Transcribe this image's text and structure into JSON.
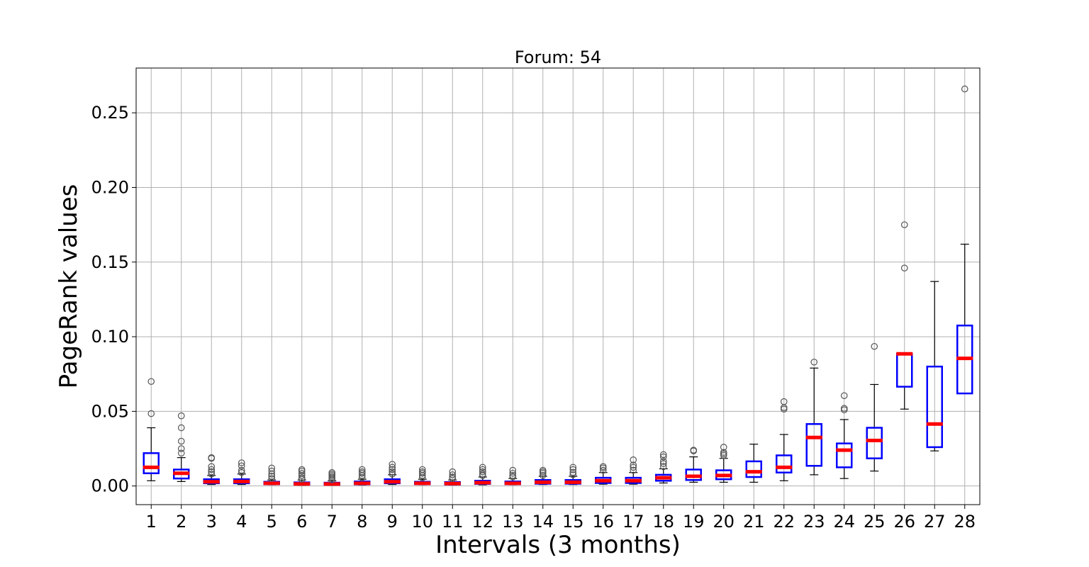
{
  "chart_data": {
    "type": "box",
    "title": "Forum: 54",
    "xlabel": "Intervals (3 months)",
    "ylabel": "PageRank values",
    "ylim": [
      -0.0125,
      0.28
    ],
    "yticks": [
      0.0,
      0.05,
      0.1,
      0.15,
      0.2,
      0.25
    ],
    "ytick_labels": [
      "0.00",
      "0.05",
      "0.10",
      "0.15",
      "0.20",
      "0.25"
    ],
    "grid": true,
    "colors": {
      "box": "#0000ff",
      "median": "#ff0000",
      "whisker": "#000000",
      "flier": "#555555",
      "grid": "#b0b0b0"
    },
    "categories": [
      "1",
      "2",
      "3",
      "4",
      "5",
      "6",
      "7",
      "8",
      "9",
      "10",
      "11",
      "12",
      "13",
      "14",
      "15",
      "16",
      "17",
      "18",
      "19",
      "20",
      "21",
      "22",
      "23",
      "24",
      "25",
      "26",
      "27",
      "28"
    ],
    "boxes": [
      {
        "whislo": 0.0035,
        "q1": 0.0085,
        "med": 0.0125,
        "q3": 0.022,
        "whishi": 0.039,
        "fliers": [
          0.0485,
          0.07
        ]
      },
      {
        "whislo": 0.003,
        "q1": 0.005,
        "med": 0.0085,
        "q3": 0.011,
        "whishi": 0.019,
        "fliers": [
          0.022,
          0.025,
          0.03,
          0.039,
          0.047
        ]
      },
      {
        "whislo": 0.001,
        "q1": 0.0018,
        "med": 0.0028,
        "q3": 0.0045,
        "whishi": 0.007,
        "fliers": [
          0.008,
          0.0095,
          0.011,
          0.013,
          0.0185,
          0.019
        ]
      },
      {
        "whislo": 0.001,
        "q1": 0.0018,
        "med": 0.003,
        "q3": 0.0045,
        "whishi": 0.008,
        "fliers": [
          0.009,
          0.0105,
          0.0135,
          0.0155
        ]
      },
      {
        "whislo": 0.0008,
        "q1": 0.0012,
        "med": 0.0018,
        "q3": 0.0028,
        "whishi": 0.004,
        "fliers": [
          0.005,
          0.0065,
          0.008,
          0.01,
          0.012
        ]
      },
      {
        "whislo": 0.0005,
        "q1": 0.0009,
        "med": 0.0014,
        "q3": 0.0024,
        "whishi": 0.004,
        "fliers": [
          0.0045,
          0.0055,
          0.007,
          0.0085,
          0.01,
          0.011
        ]
      },
      {
        "whislo": 0.0005,
        "q1": 0.0009,
        "med": 0.0013,
        "q3": 0.0022,
        "whishi": 0.0035,
        "fliers": [
          0.004,
          0.005,
          0.006,
          0.007,
          0.008,
          0.009
        ]
      },
      {
        "whislo": 0.0007,
        "q1": 0.0011,
        "med": 0.0018,
        "q3": 0.003,
        "whishi": 0.0045,
        "fliers": [
          0.0055,
          0.007,
          0.0085,
          0.0095,
          0.011
        ]
      },
      {
        "whislo": 0.001,
        "q1": 0.0018,
        "med": 0.0028,
        "q3": 0.0045,
        "whishi": 0.0075,
        "fliers": [
          0.008,
          0.0095,
          0.011,
          0.0125,
          0.0145
        ]
      },
      {
        "whislo": 0.0008,
        "q1": 0.0012,
        "med": 0.0018,
        "q3": 0.0028,
        "whishi": 0.0045,
        "fliers": [
          0.0055,
          0.007,
          0.0085,
          0.0095,
          0.011
        ]
      },
      {
        "whislo": 0.0006,
        "q1": 0.001,
        "med": 0.0016,
        "q3": 0.0026,
        "whishi": 0.004,
        "fliers": [
          0.005,
          0.006,
          0.0075,
          0.0095
        ]
      },
      {
        "whislo": 0.0008,
        "q1": 0.0014,
        "med": 0.0022,
        "q3": 0.0035,
        "whishi": 0.006,
        "fliers": [
          0.007,
          0.008,
          0.0095,
          0.011,
          0.0125
        ]
      },
      {
        "whislo": 0.0008,
        "q1": 0.0012,
        "med": 0.0018,
        "q3": 0.003,
        "whishi": 0.005,
        "fliers": [
          0.006,
          0.007,
          0.0085,
          0.0105
        ]
      },
      {
        "whislo": 0.001,
        "q1": 0.0015,
        "med": 0.0025,
        "q3": 0.004,
        "whishi": 0.0065,
        "fliers": [
          0.007,
          0.0085,
          0.0095,
          0.0105
        ]
      },
      {
        "whislo": 0.001,
        "q1": 0.0015,
        "med": 0.0025,
        "q3": 0.004,
        "whishi": 0.0065,
        "fliers": [
          0.0075,
          0.009,
          0.011,
          0.0125
        ]
      },
      {
        "whislo": 0.0012,
        "q1": 0.002,
        "med": 0.0035,
        "q3": 0.0055,
        "whishi": 0.009,
        "fliers": [
          0.0105,
          0.012,
          0.013
        ]
      },
      {
        "whislo": 0.0012,
        "q1": 0.002,
        "med": 0.0035,
        "q3": 0.0055,
        "whishi": 0.009,
        "fliers": [
          0.0105,
          0.0125,
          0.014,
          0.0175
        ]
      },
      {
        "whislo": 0.002,
        "q1": 0.0035,
        "med": 0.0055,
        "q3": 0.0075,
        "whishi": 0.0115,
        "fliers": [
          0.013,
          0.015,
          0.0165,
          0.0195,
          0.021
        ]
      },
      {
        "whislo": 0.0025,
        "q1": 0.004,
        "med": 0.0065,
        "q3": 0.011,
        "whishi": 0.0195,
        "fliers": [
          0.0235,
          0.024
        ]
      },
      {
        "whislo": 0.0025,
        "q1": 0.0045,
        "med": 0.007,
        "q3": 0.0105,
        "whishi": 0.0185,
        "fliers": [
          0.0205,
          0.0215,
          0.0225,
          0.026
        ]
      },
      {
        "whislo": 0.0025,
        "q1": 0.006,
        "med": 0.0095,
        "q3": 0.0165,
        "whishi": 0.028,
        "fliers": []
      },
      {
        "whislo": 0.0035,
        "q1": 0.009,
        "med": 0.0125,
        "q3": 0.0205,
        "whishi": 0.0345,
        "fliers": [
          0.0515,
          0.0525,
          0.0565
        ]
      },
      {
        "whislo": 0.0075,
        "q1": 0.0135,
        "med": 0.0325,
        "q3": 0.0415,
        "whishi": 0.079,
        "fliers": [
          0.083
        ]
      },
      {
        "whislo": 0.005,
        "q1": 0.0125,
        "med": 0.024,
        "q3": 0.0285,
        "whishi": 0.0445,
        "fliers": [
          0.051,
          0.052,
          0.0605
        ]
      },
      {
        "whislo": 0.01,
        "q1": 0.0185,
        "med": 0.0305,
        "q3": 0.039,
        "whishi": 0.068,
        "fliers": [
          0.0935
        ]
      },
      {
        "whislo": 0.0515,
        "q1": 0.0665,
        "med": 0.0885,
        "q3": 0.0885,
        "whishi": 0.0885,
        "fliers": [
          0.146,
          0.175
        ]
      },
      {
        "whislo": 0.0235,
        "q1": 0.026,
        "med": 0.0415,
        "q3": 0.08,
        "whishi": 0.137,
        "fliers": []
      },
      {
        "whislo": 0.062,
        "q1": 0.062,
        "med": 0.0855,
        "q3": 0.1075,
        "whishi": 0.162,
        "fliers": [
          0.266
        ]
      }
    ]
  }
}
